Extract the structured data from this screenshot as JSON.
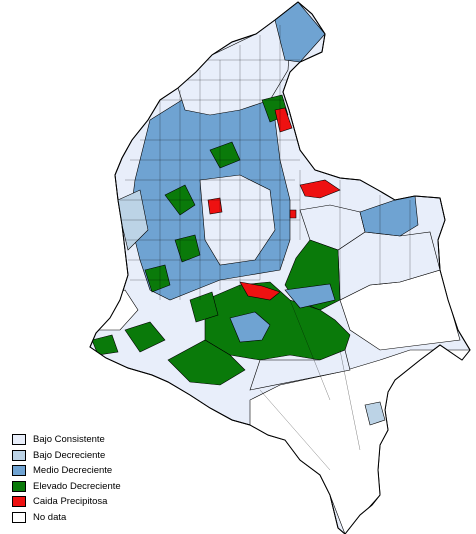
{
  "legend": {
    "items": [
      {
        "label": "Bajo Consistente",
        "color": "#e8eefa",
        "key": "bajo_consistente"
      },
      {
        "label": "Bajo Decreciente",
        "color": "#bcd3e6",
        "key": "bajo_decreciente"
      },
      {
        "label": "Medio Decreciente",
        "color": "#6fa3d2",
        "key": "medio_decreciente"
      },
      {
        "label": "Elevado Decreciente",
        "color": "#0a7a0a",
        "key": "elevado_decreciente"
      },
      {
        "label": "Caida Precipitosa",
        "color": "#ee1111",
        "key": "caida_precipitosa"
      },
      {
        "label": "No data",
        "color": "#ffffff",
        "key": "no_data"
      }
    ]
  }
}
